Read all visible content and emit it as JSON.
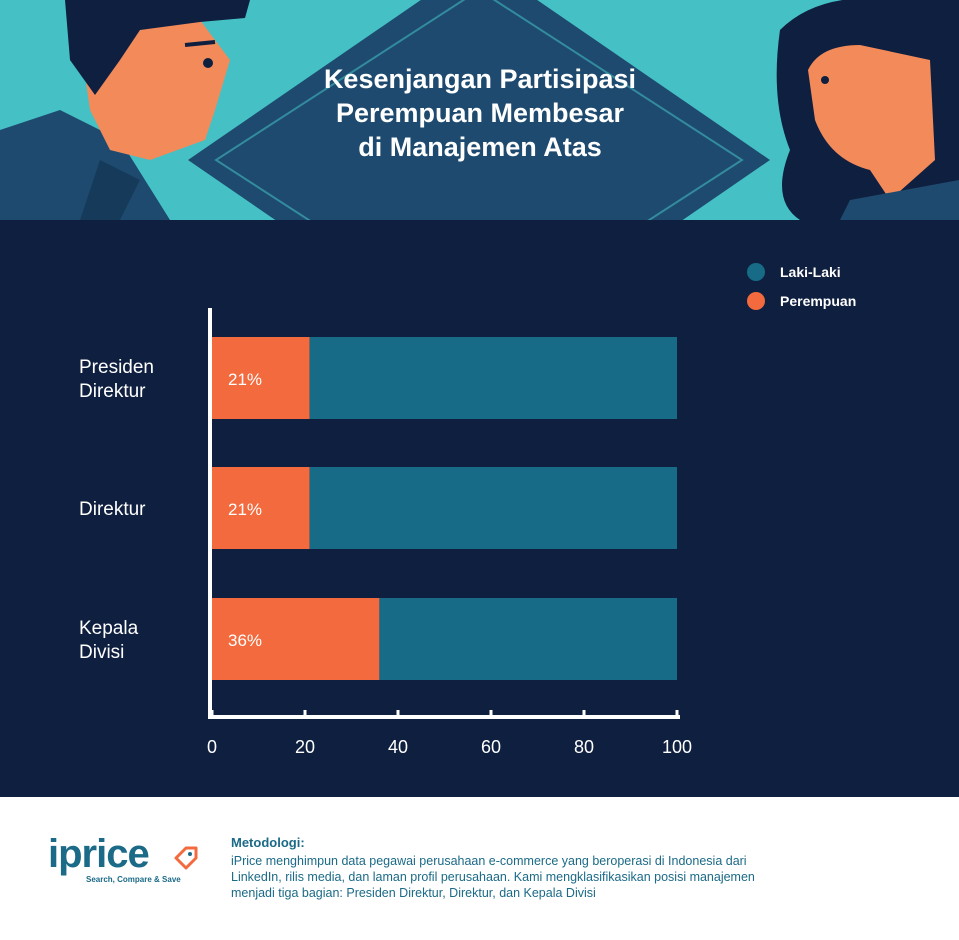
{
  "header": {
    "title": "Kesenjangan Partisipasi\nPerempuan Membesar\ndi Manajemen Atas"
  },
  "colors": {
    "laki": "#176b87",
    "perempuan": "#f26a3d",
    "background": "#0f1f3f",
    "header": "#45c1c6"
  },
  "chart_data": {
    "type": "bar",
    "orientation": "horizontal",
    "stacked": true,
    "categories": [
      "Presiden\nDirektur",
      "Direktur",
      "Kepala\nDivisi"
    ],
    "series": [
      {
        "name": "Perempuan",
        "values": [
          21,
          21,
          36
        ],
        "labels": [
          "21%",
          "21%",
          "36%"
        ]
      },
      {
        "name": "Laki-Laki",
        "values": [
          79,
          79,
          64
        ]
      }
    ],
    "legend": [
      "Laki-Laki",
      "Perempuan"
    ],
    "legend_position": "top-right",
    "xlim": [
      0,
      100
    ],
    "xticks": [
      0,
      20,
      40,
      60,
      80,
      100
    ],
    "grid": false
  },
  "footer": {
    "logo_text": "iprice",
    "logo_tagline": "Search, Compare & Save",
    "method_title": "Metodologi:",
    "method_text": "iPrice menghimpun data pegawai perusahaan e-commerce yang beroperasi di Indonesia dari LinkedIn, rilis media, dan laman profil perusahaan. Kami mengklasifikasikan posisi manajemen menjadi tiga bagian: Presiden Direktur, Direktur, dan Kepala Divisi"
  }
}
